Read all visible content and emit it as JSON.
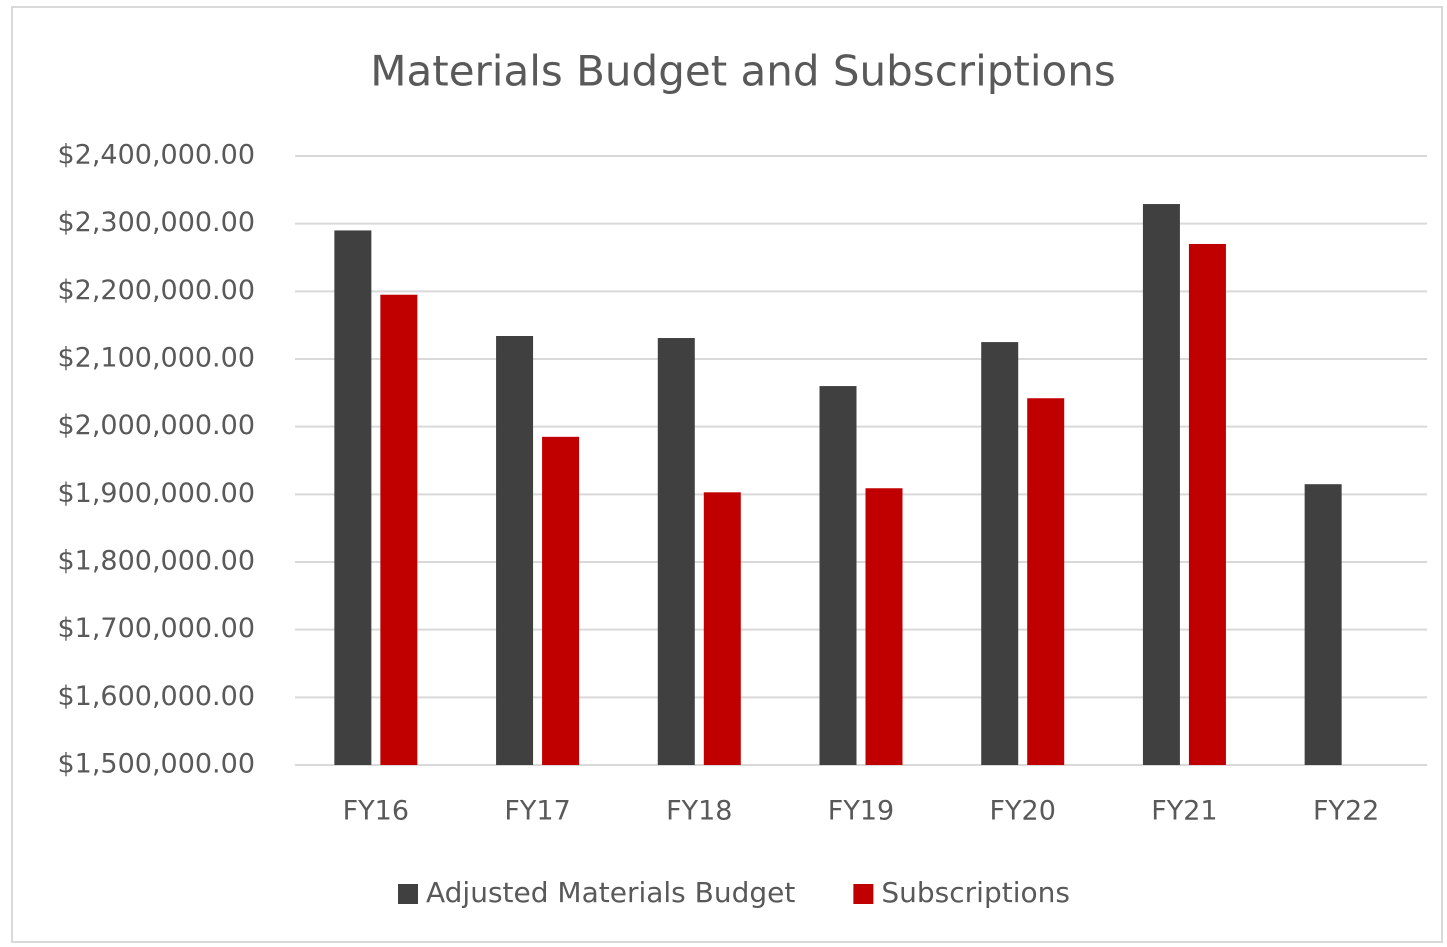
{
  "chart_data": {
    "type": "bar",
    "title": "Materials Budget and Subscriptions",
    "categories": [
      "FY16",
      "FY17",
      "FY18",
      "FY19",
      "FY20",
      "FY21",
      "FY22"
    ],
    "series": [
      {
        "name": "Adjusted Materials Budget",
        "color": "#404040",
        "values": [
          2290000,
          2134000,
          2131000,
          2060000,
          2125000,
          2329000,
          1915000
        ]
      },
      {
        "name": "Subscriptions",
        "color": "#c00000",
        "values": [
          2195000,
          1985000,
          1903000,
          1909000,
          2042000,
          2270000,
          null
        ]
      }
    ],
    "ylim": [
      1500000,
      2400000
    ],
    "yticks": [
      {
        "value": 1500000,
        "label": "$1,500,000.00"
      },
      {
        "value": 1600000,
        "label": "$1,600,000.00"
      },
      {
        "value": 1700000,
        "label": "$1,700,000.00"
      },
      {
        "value": 1800000,
        "label": "$1,800,000.00"
      },
      {
        "value": 1900000,
        "label": "$1,900,000.00"
      },
      {
        "value": 2000000,
        "label": "$2,000,000.00"
      },
      {
        "value": 2100000,
        "label": "$2,100,000.00"
      },
      {
        "value": 2200000,
        "label": "$2,200,000.00"
      },
      {
        "value": 2300000,
        "label": "$2,300,000.00"
      },
      {
        "value": 2400000,
        "label": "$2,400,000.00"
      }
    ],
    "grid": true,
    "legend": "bottom"
  }
}
